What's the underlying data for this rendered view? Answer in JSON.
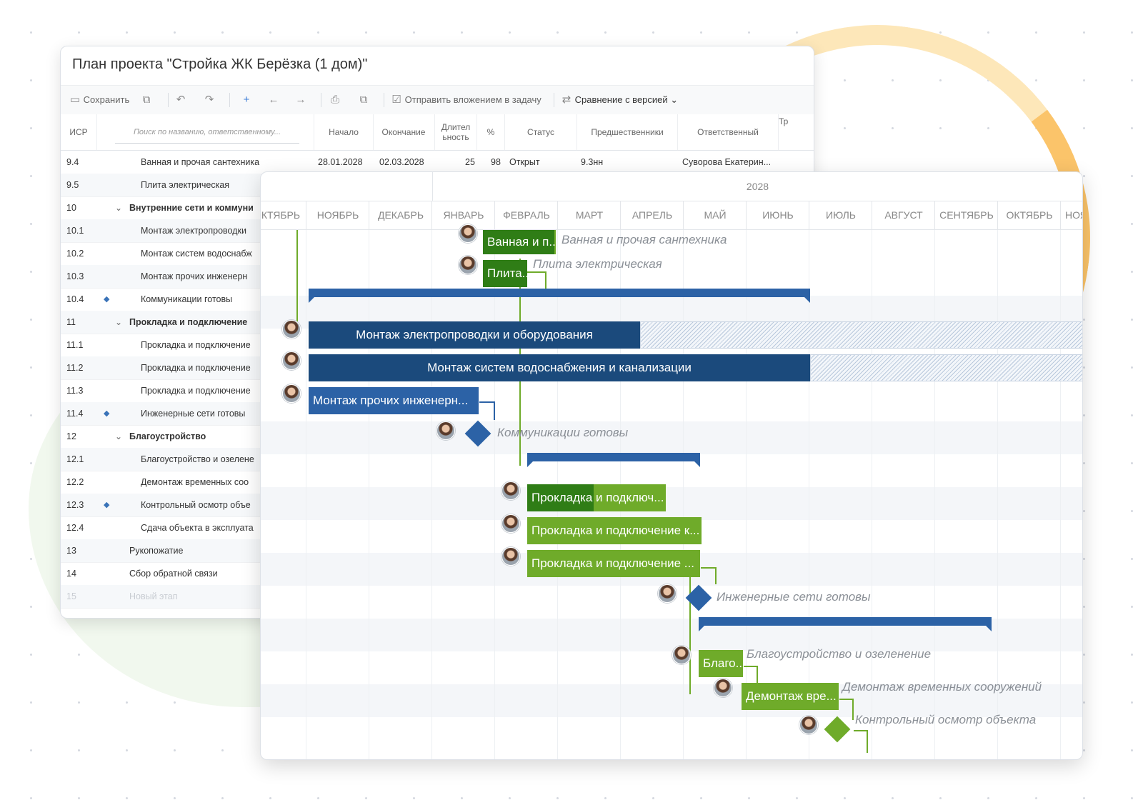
{
  "window_title": "План проекта \"Стройка ЖК Берёзка (1 дом)\"",
  "toolbar": {
    "save_label": "Сохранить",
    "attach_label": "Отправить вложением в задачу",
    "compare_label": "Сравнение с версией"
  },
  "columns": {
    "wbs": "ИСР",
    "search_placeholder": "Поиск по названию, ответственному...",
    "start": "Начало",
    "end": "Окончание",
    "duration": "Длител ьность",
    "percent": "%",
    "status": "Статус",
    "predecessors": "Предшественники",
    "responsible": "Ответственный",
    "extra": "Тр"
  },
  "rows": [
    {
      "wbs": "9.4",
      "name": "Ванная и прочая сантехника",
      "start": "28.01.2028",
      "end": "02.03.2028",
      "duration": "25",
      "percent": "98",
      "status": "Открыт",
      "pred": "9.3нн",
      "resp": "Суворова Екатерин..."
    },
    {
      "wbs": "9.5",
      "name": "Плита электрическая"
    },
    {
      "wbs": "10",
      "name": "Внутренние сети и коммуни"
    },
    {
      "wbs": "10.1",
      "name": "Монтаж электропроводки"
    },
    {
      "wbs": "10.2",
      "name": "Монтаж систем водоснабж"
    },
    {
      "wbs": "10.3",
      "name": "Монтаж прочих инженерн"
    },
    {
      "wbs": "10.4",
      "name": "Коммуникации готовы"
    },
    {
      "wbs": "11",
      "name": "Прокладка и подключение"
    },
    {
      "wbs": "11.1",
      "name": "Прокладка и подключение"
    },
    {
      "wbs": "11.2",
      "name": "Прокладка и подключение"
    },
    {
      "wbs": "11.3",
      "name": "Прокладка и подключение"
    },
    {
      "wbs": "11.4",
      "name": "Инженерные сети готовы"
    },
    {
      "wbs": "12",
      "name": "Благоустройство"
    },
    {
      "wbs": "12.1",
      "name": "Благоустройство и озелене"
    },
    {
      "wbs": "12.2",
      "name": "Демонтаж временных соо"
    },
    {
      "wbs": "12.3",
      "name": "Контрольный осмотр объе"
    },
    {
      "wbs": "12.4",
      "name": "Сдача объекта в эксплуата"
    },
    {
      "wbs": "13",
      "name": "Рукопожатие"
    },
    {
      "wbs": "14",
      "name": "Сбор обратной связи"
    },
    {
      "wbs": "15",
      "name": "Новый этап"
    }
  ],
  "gantt": {
    "year": "2028",
    "months": [
      "ОКТЯБРЬ",
      "НОЯБРЬ",
      "ДЕКАБРЬ",
      "ЯНВАРЬ",
      "ФЕВРАЛЬ",
      "МАРТ",
      "АПРЕЛЬ",
      "МАЙ",
      "ИЮНЬ",
      "ИЮЛЬ",
      "АВГУСТ",
      "СЕНТЯБРЬ",
      "ОКТЯБРЬ",
      "НОЯБРЬ"
    ],
    "bars": {
      "b1": "Ванная и п...",
      "b1_tail": "Ванная и прочая сантехника",
      "b2": "Плита...",
      "b2_tail": "Плита электрическая",
      "b3": "Монтаж электропроводки и оборудования",
      "b4": "Монтаж систем водоснабжения и канализации",
      "b5": "Монтаж прочих инженерн...",
      "m1_tail": "Коммуникации готовы",
      "b6": "Прокладка и подключ...",
      "b7": "Прокладка и подключение к...",
      "b8": "Прокладка и подключение ...",
      "m2_tail": "Инженерные сети готовы",
      "b9": "Благо...",
      "b9_tail": "Благоустройство и озеленение",
      "b10": "Демонтаж вре...",
      "b10_tail": "Демонтаж временных сооружений",
      "m3_tail": "Контрольный осмотр объекта"
    }
  }
}
